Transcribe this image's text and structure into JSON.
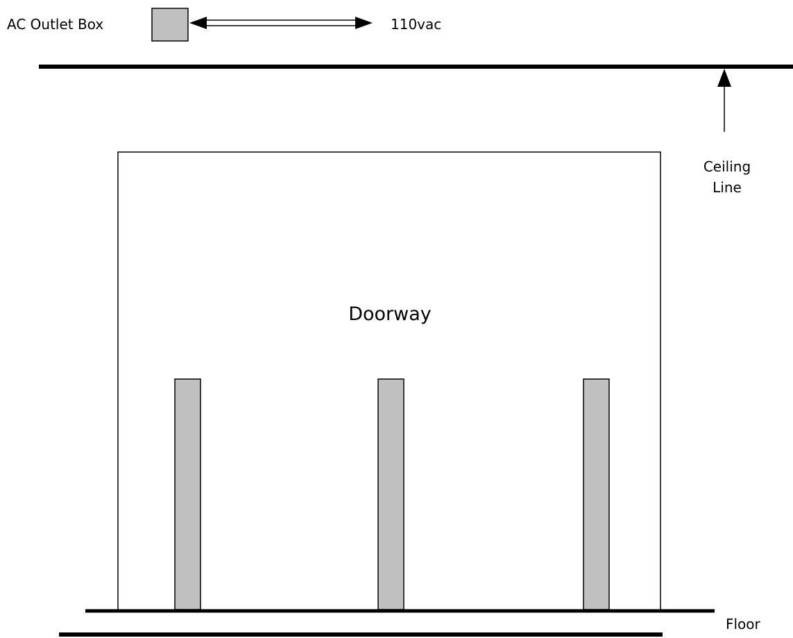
{
  "labels": {
    "outlet_box": "AC Outlet Box",
    "voltage": "110vac",
    "ceiling_line_1": "Ceiling",
    "ceiling_line_2": "Line",
    "doorway": "Doorway",
    "floor": "Floor"
  },
  "colors": {
    "line": "#000000",
    "fill_gray": "#c0c0c0",
    "background": "#ffffff"
  },
  "icons": {
    "voltage_connector": "double-arrow-icon",
    "ceiling_pointer": "arrow-up-icon"
  },
  "posts_count": 3
}
